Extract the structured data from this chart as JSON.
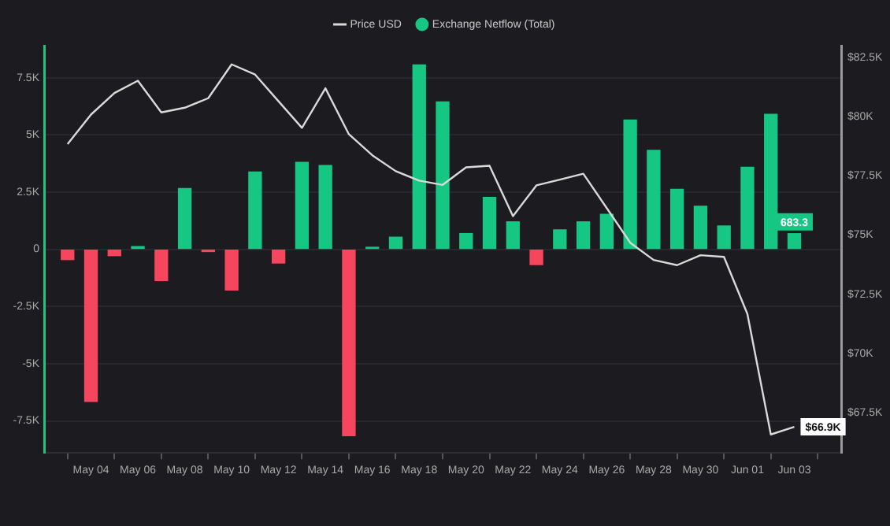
{
  "chart_data": {
    "type": "bar",
    "x": [
      "--05-03",
      "--05-04",
      "--05-05",
      "--05-06",
      "--05-07",
      "--05-08",
      "--05-09",
      "--05-10",
      "--05-11",
      "--05-12",
      "--05-13",
      "--05-14",
      "--05-15",
      "--05-16",
      "--05-17",
      "--05-18",
      "--05-19",
      "--05-20",
      "--05-21",
      "--05-22",
      "--05-23",
      "--05-24",
      "--05-25",
      "--05-26",
      "--05-27",
      "--05-28",
      "--05-29",
      "--05-30",
      "--05-31",
      "--06-01",
      "--06-02",
      "--06-03"
    ],
    "series": [
      {
        "name": "Price USD",
        "type": "line",
        "axis": "y2",
        "color": "#d9d9d9",
        "marker": "none",
        "values": [
          78840,
          80090,
          81000,
          81520,
          80180,
          80380,
          80780,
          82210,
          81780,
          80650,
          79530,
          81200,
          79260,
          78370,
          77700,
          77300,
          77120,
          77860,
          77930,
          75800,
          77100,
          77340,
          77590,
          76140,
          74680,
          73950,
          73730,
          74150,
          74080,
          71670,
          66580,
          66900
        ],
        "value_labels": [
          null,
          null,
          null,
          null,
          null,
          null,
          null,
          null,
          null,
          null,
          null,
          null,
          null,
          null,
          null,
          null,
          null,
          null,
          null,
          null,
          null,
          null,
          null,
          null,
          null,
          null,
          null,
          null,
          null,
          null,
          null,
          "$66.9K"
        ]
      },
      {
        "name": "Exchange Netflow (Total)",
        "color": "#16c784",
        "colors": [
          "#f6465d",
          "#f6465d",
          "#f6465d",
          "#16c784",
          "#f6465d",
          "#16c784",
          "#f6465d",
          "#f6465d",
          "#16c784",
          "#f6465d",
          "#16c784",
          "#16c784",
          "#f6465d",
          "#16c784",
          "#16c784",
          "#16c784",
          "#16c784",
          "#16c784",
          "#16c784",
          "#16c784",
          "#f6465d",
          "#16c784",
          "#16c784",
          "#16c784",
          "#16c784",
          "#16c784",
          "#16c784",
          "#16c784",
          "#16c784",
          "#16c784",
          "#16c784",
          "#16c784"
        ],
        "values": [
          -450,
          -6650,
          -280,
          120,
          -1370,
          2660,
          -100,
          -1780,
          3380,
          -600,
          3800,
          3660,
          -8150,
          90,
          530,
          8060,
          6440,
          690,
          2270,
          1200,
          -670,
          850,
          1200,
          1530,
          5650,
          4330,
          2620,
          1880,
          1020,
          3590,
          5900,
          683.3
        ],
        "value_labels": [
          null,
          null,
          null,
          null,
          null,
          null,
          null,
          null,
          null,
          null,
          null,
          null,
          null,
          null,
          null,
          null,
          null,
          null,
          null,
          null,
          null,
          null,
          null,
          null,
          null,
          null,
          null,
          null,
          null,
          null,
          null,
          "683.3"
        ]
      }
    ],
    "xlim": [
      "--05-02",
      "--06-05"
    ],
    "xticks": [
      {
        "value": "--05-04",
        "label": "May 04"
      },
      {
        "value": "--05-06",
        "label": "May 06"
      },
      {
        "value": "--05-08",
        "label": "May 08"
      },
      {
        "value": "--05-10",
        "label": "May 10"
      },
      {
        "value": "--05-12",
        "label": "May 12"
      },
      {
        "value": "--05-14",
        "label": "May 14"
      },
      {
        "value": "--05-16",
        "label": "May 16"
      },
      {
        "value": "--05-18",
        "label": "May 18"
      },
      {
        "value": "--05-20",
        "label": "May 20"
      },
      {
        "value": "--05-22",
        "label": "May 22"
      },
      {
        "value": "--05-24",
        "label": "May 24"
      },
      {
        "value": "--05-26",
        "label": "May 26"
      },
      {
        "value": "--05-28",
        "label": "May 28"
      },
      {
        "value": "--05-30",
        "label": "May 30"
      },
      {
        "value": "--06-01",
        "label": "Jun 01"
      },
      {
        "value": "--06-03",
        "label": "Jun 03"
      }
    ],
    "ylim": [
      -8900,
      8900
    ],
    "yticks": [
      {
        "value": -7500,
        "label": "-7.5K"
      },
      {
        "value": -5000,
        "label": "-5K"
      },
      {
        "value": -2500,
        "label": "-2.5K"
      },
      0,
      {
        "value": 2500,
        "label": "2.5K"
      },
      {
        "value": 5000,
        "label": "5K"
      },
      {
        "value": 7500,
        "label": "7.5K"
      }
    ],
    "y2lim": [
      65800,
      83000
    ],
    "y2ticks": [
      {
        "value": 67500,
        "label": "$67.5K"
      },
      {
        "value": 70000,
        "label": "$70K"
      },
      {
        "value": 72500,
        "label": "$72.5K"
      },
      {
        "value": 75000,
        "label": "$75K"
      },
      {
        "value": 77500,
        "label": "$77.5K"
      },
      {
        "value": 80000,
        "label": "$80K"
      },
      {
        "value": 82500,
        "label": "$82.5K"
      }
    ],
    "grid": "y",
    "legend": "top"
  }
}
